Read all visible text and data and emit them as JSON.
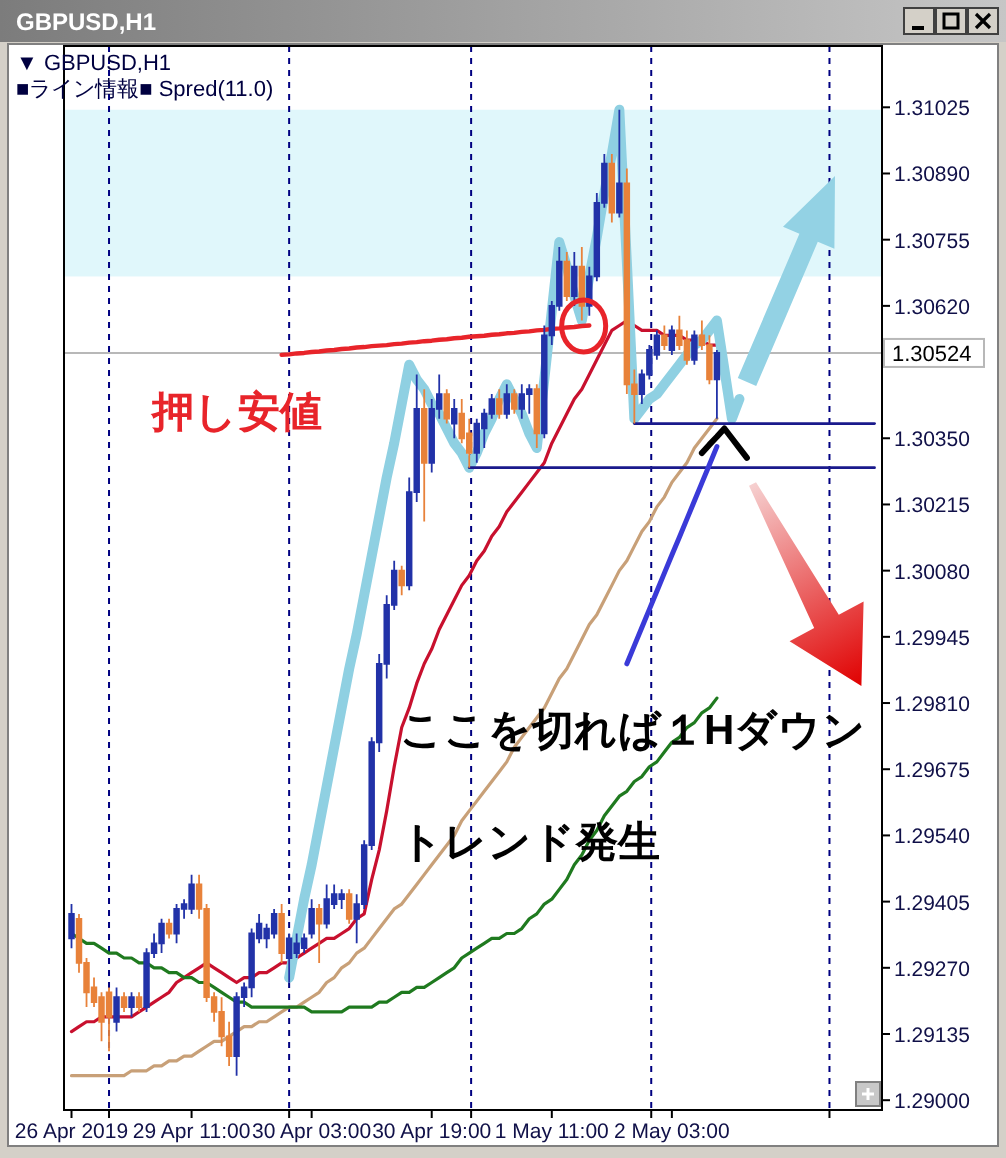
{
  "chart_data": {
    "type": "candlestick",
    "title": "GBPUSD,H1",
    "subtitle": "▼ GBPUSD,H1",
    "annotations": [
      "■ライン情報■ Spred(11.0)",
      "押し安値",
      "ここを切れば１Hダウン",
      "トレンド発生"
    ],
    "grid": "x",
    "categories": [
      "26 Apr 2019",
      null,
      null,
      null,
      null,
      null,
      null,
      null,
      null,
      null,
      null,
      null,
      null,
      null,
      null,
      null,
      "29 Apr 11:00",
      null,
      null,
      null,
      null,
      null,
      null,
      null,
      null,
      null,
      null,
      null,
      null,
      null,
      null,
      null,
      "30 Apr 03:00",
      null,
      null,
      null,
      null,
      null,
      null,
      null,
      null,
      null,
      null,
      null,
      null,
      null,
      null,
      null,
      "30 Apr 19:00",
      null,
      null,
      null,
      null,
      null,
      null,
      null,
      null,
      null,
      null,
      null,
      null,
      null,
      null,
      null,
      "1 May 11:00",
      null,
      null,
      null,
      null,
      null,
      null,
      null,
      null,
      null,
      null,
      null,
      null,
      null,
      null,
      null,
      "2 May 03:00",
      null,
      null,
      null,
      null,
      null,
      null,
      null,
      null,
      null,
      null,
      null,
      null,
      null,
      null,
      null,
      null,
      null,
      null,
      null,
      null,
      null,
      null,
      null,
      null,
      null,
      null,
      null
    ],
    "ohlc": [
      [
        1.2933,
        1.294,
        1.2931,
        1.2938
      ],
      [
        1.2937,
        1.2938,
        1.2926,
        1.2928
      ],
      [
        1.2928,
        1.2929,
        1.2919,
        1.2922
      ],
      [
        1.2923,
        1.2925,
        1.2919,
        1.292
      ],
      [
        1.2921,
        1.2922,
        1.2912,
        1.2916
      ],
      [
        1.2922,
        1.2923,
        1.291,
        1.2917
      ],
      [
        1.2916,
        1.2923,
        1.2914,
        1.2921
      ],
      [
        1.2921,
        1.2922,
        1.2918,
        1.2919
      ],
      [
        1.2919,
        1.2922,
        1.2917,
        1.2921
      ],
      [
        1.2921,
        1.2922,
        1.2918,
        1.2919
      ],
      [
        1.2919,
        1.2931,
        1.2918,
        1.293
      ],
      [
        1.293,
        1.2934,
        1.2929,
        1.2932
      ],
      [
        1.2932,
        1.2937,
        1.293,
        1.2936
      ],
      [
        1.2936,
        1.2937,
        1.2933,
        1.2934
      ],
      [
        1.2934,
        1.294,
        1.2932,
        1.2939
      ],
      [
        1.2939,
        1.2941,
        1.2937,
        1.294
      ],
      [
        1.2939,
        1.2946,
        1.2938,
        1.2944
      ],
      [
        1.2944,
        1.2946,
        1.2937,
        1.2939
      ],
      [
        1.2939,
        1.294,
        1.292,
        1.2921
      ],
      [
        1.2921,
        1.2922,
        1.2916,
        1.2918
      ],
      [
        1.2918,
        1.2921,
        1.2911,
        1.2913
      ],
      [
        1.2913,
        1.2916,
        1.2907,
        1.2909
      ],
      [
        1.2909,
        1.2922,
        1.2905,
        1.2921
      ],
      [
        1.2921,
        1.2924,
        1.2919,
        1.2923
      ],
      [
        1.2923,
        1.2935,
        1.2921,
        1.2934
      ],
      [
        1.2933,
        1.2938,
        1.2932,
        1.2936
      ],
      [
        1.2933,
        1.2936,
        1.2931,
        1.2935
      ],
      [
        1.2934,
        1.2939,
        1.2933,
        1.2938
      ],
      [
        1.2938,
        1.294,
        1.2928,
        1.293
      ],
      [
        1.2929,
        1.2934,
        1.2924,
        1.2933
      ],
      [
        1.293,
        1.2934,
        1.2929,
        1.2932
      ],
      [
        1.2931,
        1.2934,
        1.293,
        1.2933
      ],
      [
        1.2934,
        1.2941,
        1.2933,
        1.2939
      ],
      [
        1.2939,
        1.294,
        1.2928,
        1.2936
      ],
      [
        1.2936,
        1.2944,
        1.2935,
        1.2941
      ],
      [
        1.294,
        1.2944,
        1.2939,
        1.2942
      ],
      [
        1.2941,
        1.2943,
        1.2939,
        1.2942
      ],
      [
        1.2942,
        1.2943,
        1.2936,
        1.2937
      ],
      [
        1.2937,
        1.2942,
        1.2932,
        1.294
      ],
      [
        1.294,
        1.2953,
        1.2939,
        1.2952
      ],
      [
        1.2952,
        1.2974,
        1.2951,
        1.2973
      ],
      [
        1.2973,
        1.2991,
        1.2971,
        1.2989
      ],
      [
        1.2989,
        1.3003,
        1.2986,
        1.3001
      ],
      [
        1.3001,
        1.301,
        1.3,
        1.3008
      ],
      [
        1.3008,
        1.3009,
        1.3003,
        1.3005
      ],
      [
        1.3005,
        1.3027,
        1.3004,
        1.3024
      ],
      [
        1.3024,
        1.3048,
        1.3022,
        1.3041
      ],
      [
        1.3041,
        1.3045,
        1.3018,
        1.303
      ],
      [
        1.303,
        1.3043,
        1.3028,
        1.3041
      ],
      [
        1.3041,
        1.3048,
        1.3039,
        1.3044
      ],
      [
        1.3044,
        1.3045,
        1.3038,
        1.3039
      ],
      [
        1.3038,
        1.3043,
        1.3035,
        1.3041
      ],
      [
        1.304,
        1.3043,
        1.3034,
        1.3035
      ],
      [
        1.3036,
        1.3039,
        1.3029,
        1.3032
      ],
      [
        1.3032,
        1.3039,
        1.303,
        1.3038
      ],
      [
        1.3037,
        1.3041,
        1.3033,
        1.304
      ],
      [
        1.304,
        1.3044,
        1.3039,
        1.3043
      ],
      [
        1.3043,
        1.3045,
        1.3039,
        1.304
      ],
      [
        1.304,
        1.3046,
        1.3039,
        1.3044
      ],
      [
        1.3044,
        1.3045,
        1.304,
        1.3041
      ],
      [
        1.3041,
        1.3046,
        1.3039,
        1.3044
      ],
      [
        1.3044,
        1.3046,
        1.304,
        1.3045
      ],
      [
        1.3045,
        1.3046,
        1.3033,
        1.3036
      ],
      [
        1.3036,
        1.3058,
        1.3035,
        1.3056
      ],
      [
        1.3056,
        1.3063,
        1.3054,
        1.3062
      ],
      [
        1.3062,
        1.3074,
        1.3061,
        1.3071
      ],
      [
        1.3071,
        1.3073,
        1.3063,
        1.3064
      ],
      [
        1.3064,
        1.3073,
        1.3062,
        1.307
      ],
      [
        1.307,
        1.3074,
        1.3059,
        1.3062
      ],
      [
        1.3062,
        1.307,
        1.306,
        1.3068
      ],
      [
        1.3068,
        1.3085,
        1.3067,
        1.3083
      ],
      [
        1.3083,
        1.3093,
        1.3082,
        1.3091
      ],
      [
        1.3091,
        1.3093,
        1.3079,
        1.3081
      ],
      [
        1.3081,
        1.3102,
        1.308,
        1.3087
      ],
      [
        1.3087,
        1.309,
        1.3044,
        1.3046
      ],
      [
        1.3046,
        1.3049,
        1.3038,
        1.3044
      ],
      [
        1.3044,
        1.3049,
        1.3042,
        1.3048
      ],
      [
        1.3048,
        1.3054,
        1.3047,
        1.3053
      ],
      [
        1.3052,
        1.3057,
        1.3051,
        1.3056
      ],
      [
        1.3056,
        1.3058,
        1.3053,
        1.3054
      ],
      [
        1.3053,
        1.3058,
        1.3052,
        1.3057
      ],
      [
        1.3057,
        1.306,
        1.3053,
        1.3054
      ],
      [
        1.3055,
        1.3057,
        1.305,
        1.3051
      ],
      [
        1.3051,
        1.3057,
        1.305,
        1.3056
      ],
      [
        1.3056,
        1.3059,
        1.3053,
        1.3054
      ],
      [
        1.3054,
        1.3056,
        1.3046,
        1.3047
      ],
      [
        1.3047,
        1.3053,
        1.3039,
        1.30524
      ],
      null,
      null,
      null,
      null,
      null,
      null,
      null,
      null,
      null,
      null,
      null,
      null,
      null,
      null,
      null,
      null,
      null,
      null,
      null,
      null,
      null
    ],
    "colors": [
      "#2232a8",
      "#e8823a",
      "#e8823a",
      "#e8823a",
      "#e8823a",
      "#e8823a",
      "#2232a8",
      "#e8823a",
      "#2232a8",
      "#e8823a",
      "#2232a8",
      "#2232a8",
      "#2232a8",
      "#e8823a",
      "#2232a8",
      "#2232a8",
      "#2232a8",
      "#e8823a",
      "#e8823a",
      "#e8823a",
      "#e8823a",
      "#e8823a",
      "#2232a8",
      "#2232a8",
      "#2232a8",
      "#2232a8",
      "#2232a8",
      "#2232a8",
      "#e8823a",
      "#2232a8",
      "#2232a8",
      "#2232a8",
      "#2232a8",
      "#e8823a",
      "#2232a8",
      "#2232a8",
      "#2232a8",
      "#e8823a",
      "#2232a8",
      "#2232a8",
      "#2232a8",
      "#2232a8",
      "#2232a8",
      "#2232a8",
      "#e8823a",
      "#2232a8",
      "#2232a8",
      "#e8823a",
      "#2232a8",
      "#2232a8",
      "#e8823a",
      "#2232a8",
      "#e8823a",
      "#e8823a",
      "#2232a8",
      "#2232a8",
      "#2232a8",
      "#e8823a",
      "#2232a8",
      "#e8823a",
      "#2232a8",
      "#2232a8",
      "#e8823a",
      "#2232a8",
      "#2232a8",
      "#2232a8",
      "#e8823a",
      "#2232a8",
      "#e8823a",
      "#2232a8",
      "#2232a8",
      "#2232a8",
      "#e8823a",
      "#2232a8",
      "#e8823a",
      "#e8823a",
      "#2232a8",
      "#2232a8",
      "#2232a8",
      "#e8823a",
      "#2232a8",
      "#e8823a",
      "#e8823a",
      "#2232a8",
      "#e8823a",
      "#e8823a",
      "#2232a8",
      null,
      null,
      null,
      null,
      null,
      null,
      null,
      null,
      null,
      null,
      null,
      null,
      null,
      null,
      null,
      null,
      null,
      null,
      null,
      null,
      null
    ],
    "series": [
      {
        "type": "line",
        "color": "#c8102e",
        "values": [
          1.2914,
          1.2915,
          1.2916,
          1.2916,
          1.2917,
          1.2917,
          1.2917,
          1.2917,
          1.2917,
          1.2918,
          1.2919,
          1.292,
          1.2921,
          1.2922,
          1.2924,
          1.2925,
          1.2926,
          1.2927,
          1.2928,
          1.2927,
          1.2926,
          1.2925,
          1.2924,
          1.2925,
          1.2925,
          1.2926,
          1.2926,
          1.2927,
          1.2928,
          1.2928,
          1.2929,
          1.293,
          1.2931,
          1.2932,
          1.2933,
          1.2933,
          1.2934,
          1.2935,
          1.2937,
          1.2938,
          1.2945,
          1.2951,
          1.2959,
          1.2968,
          1.2976,
          1.298,
          1.2985,
          1.2989,
          1.2992,
          1.2996,
          1.2999,
          1.3002,
          1.3005,
          1.3007,
          1.301,
          1.3012,
          1.3015,
          1.3017,
          1.302,
          1.3022,
          1.3024,
          1.3026,
          1.3028,
          1.303,
          1.3034,
          1.3037,
          1.304,
          1.3043,
          1.3045,
          1.3048,
          1.3051,
          1.3054,
          1.3057,
          1.3058,
          1.3059,
          1.3058,
          1.3057,
          1.3057,
          1.3057,
          1.3056,
          1.3056,
          1.3056,
          1.3055,
          1.3055,
          1.3055,
          1.3054,
          1.3054,
          null,
          null,
          null,
          null,
          null,
          null,
          null,
          null,
          null,
          null,
          null,
          null,
          null,
          null,
          null,
          null,
          null,
          null,
          null,
          null,
          null
        ]
      },
      {
        "type": "line",
        "color": "#c8a078",
        "values": [
          1.2905,
          1.2905,
          1.2905,
          1.2905,
          1.2905,
          1.2905,
          1.2905,
          1.2905,
          1.2906,
          1.2906,
          1.2906,
          1.2907,
          1.2907,
          1.2908,
          1.2908,
          1.2909,
          1.2909,
          1.291,
          1.2911,
          1.2912,
          1.2912,
          1.2913,
          1.2914,
          1.2915,
          1.2915,
          1.2916,
          1.2916,
          1.2917,
          1.2918,
          1.2919,
          1.2919,
          1.292,
          1.2921,
          1.2922,
          1.2924,
          1.2925,
          1.2927,
          1.2928,
          1.293,
          1.2931,
          1.2933,
          1.2935,
          1.2937,
          1.2939,
          1.294,
          1.2942,
          1.2944,
          1.2946,
          1.2948,
          1.295,
          1.2952,
          1.2954,
          1.2957,
          1.2959,
          1.2961,
          1.2963,
          1.2965,
          1.2967,
          1.2969,
          1.2972,
          1.2974,
          1.2976,
          1.2978,
          1.298,
          1.2983,
          1.2986,
          1.2988,
          1.2991,
          1.2994,
          1.2997,
          1.2999,
          1.3002,
          1.3005,
          1.3008,
          1.301,
          1.3013,
          1.3016,
          1.3018,
          1.3021,
          1.3023,
          1.3026,
          1.3028,
          1.303,
          1.3033,
          1.3035,
          1.3037,
          1.3039,
          null,
          null,
          null,
          null,
          null,
          null,
          null,
          null,
          null,
          null,
          null,
          null,
          null,
          null,
          null,
          null,
          null,
          null,
          null,
          null,
          null
        ]
      },
      {
        "type": "line",
        "color": "#1f7a1f",
        "values": [
          1.2934,
          1.2933,
          1.2932,
          1.2932,
          1.2931,
          1.293,
          1.293,
          1.2929,
          1.2929,
          1.2928,
          1.2928,
          1.2927,
          1.2927,
          1.2926,
          1.2926,
          1.2925,
          1.2925,
          1.2924,
          1.2924,
          1.2923,
          1.2922,
          1.2921,
          1.292,
          1.292,
          1.2919,
          1.2919,
          1.2919,
          1.2919,
          1.2919,
          1.2919,
          1.2919,
          1.2919,
          1.2918,
          1.2918,
          1.2918,
          1.2918,
          1.2918,
          1.2919,
          1.2919,
          1.2919,
          1.2919,
          1.292,
          1.292,
          1.2921,
          1.2922,
          1.2922,
          1.2923,
          1.2923,
          1.2924,
          1.2925,
          1.2926,
          1.2927,
          1.2929,
          1.293,
          1.2931,
          1.2932,
          1.2933,
          1.2933,
          1.2934,
          1.2934,
          1.2935,
          1.2937,
          1.2938,
          1.294,
          1.2941,
          1.2943,
          1.2945,
          1.2948,
          1.295,
          1.2953,
          1.2955,
          1.2958,
          1.296,
          1.2962,
          1.2963,
          1.2965,
          1.2966,
          1.2968,
          1.2969,
          1.2971,
          1.2973,
          1.2974,
          1.2976,
          1.2977,
          1.2979,
          1.298,
          1.2982,
          null,
          null,
          null,
          null,
          null,
          null,
          null,
          null,
          null,
          null,
          null,
          null,
          null,
          null,
          null,
          null,
          null,
          null,
          null,
          null,
          null
        ]
      },
      {
        "type": "line",
        "color": "#8fd0e2",
        "values": [
          null,
          null,
          null,
          null,
          null,
          null,
          null,
          null,
          null,
          null,
          null,
          null,
          null,
          null,
          null,
          null,
          null,
          null,
          null,
          null,
          null,
          null,
          null,
          null,
          null,
          null,
          null,
          null,
          null,
          1.2925,
          1.2933,
          1.2941,
          1.2948,
          1.2956,
          1.2964,
          1.2972,
          1.298,
          1.2988,
          1.2995,
          1.3003,
          1.3011,
          1.3019,
          1.3027,
          1.3034,
          1.3042,
          1.305,
          1.3047,
          1.3045,
          1.3042,
          1.304,
          1.3037,
          1.3034,
          1.3032,
          1.3029,
          1.3032,
          1.3036,
          1.3039,
          1.3043,
          1.3046,
          1.3043,
          1.304,
          1.3036,
          1.3033,
          1.3047,
          1.3061,
          1.3075,
          1.307,
          1.3064,
          1.3059,
          1.3068,
          1.3076,
          1.3085,
          1.3093,
          1.3102,
          1.3071,
          1.3039,
          1.3041,
          1.3043,
          1.3044,
          1.3046,
          1.3048,
          1.305,
          1.3052,
          1.3054,
          1.3055,
          1.3057,
          1.3059,
          1.3049,
          1.3039,
          1.3043,
          null,
          null,
          null,
          null,
          null,
          null,
          null,
          null,
          null,
          null,
          null,
          null,
          null,
          null,
          null,
          null,
          null,
          null
        ]
      },
      {
        "type": "line",
        "color": "#e8242a",
        "values": [
          null,
          null,
          null,
          null,
          null,
          null,
          null,
          null,
          null,
          null,
          null,
          null,
          null,
          null,
          null,
          null,
          null,
          null,
          null,
          null,
          null,
          null,
          null,
          null,
          null,
          null,
          null,
          null,
          1.3052,
          1.30521,
          1.30523,
          1.30524,
          1.30526,
          1.30527,
          1.30529,
          1.3053,
          1.30532,
          1.30533,
          1.30535,
          1.30536,
          1.30538,
          1.30539,
          1.3054,
          1.30542,
          1.30543,
          1.30545,
          1.30546,
          1.30548,
          1.30549,
          1.30551,
          1.30552,
          1.30554,
          1.30555,
          1.30557,
          1.30558,
          1.30559,
          1.30561,
          1.30562,
          1.30564,
          1.30565,
          1.30567,
          1.30568,
          1.3057,
          1.30571,
          1.30573,
          1.30574,
          1.30576,
          1.30577,
          1.30579,
          1.3058,
          null,
          null,
          null,
          null,
          null,
          null,
          null,
          null,
          null,
          null,
          null,
          null,
          null,
          null,
          null,
          null,
          null,
          null,
          null,
          null,
          null,
          null,
          null,
          null,
          null,
          null,
          null,
          null,
          null,
          null,
          null,
          null,
          null,
          null,
          null,
          null,
          null,
          null
        ]
      },
      {
        "type": "line",
        "color": "#1a1a8c",
        "values": [
          null,
          null,
          null,
          null,
          null,
          null,
          null,
          null,
          null,
          null,
          null,
          null,
          null,
          null,
          null,
          null,
          null,
          null,
          null,
          null,
          null,
          null,
          null,
          null,
          null,
          null,
          null,
          null,
          null,
          null,
          null,
          null,
          null,
          null,
          null,
          null,
          null,
          null,
          null,
          null,
          null,
          null,
          null,
          null,
          null,
          null,
          null,
          null,
          null,
          null,
          null,
          null,
          null,
          1.3029,
          1.3029,
          1.3029,
          1.3029,
          1.3029,
          1.3029,
          1.3029,
          1.3029,
          1.3029,
          1.3029,
          1.3029,
          1.3029,
          1.3029,
          1.3029,
          1.3029,
          1.3029,
          1.3029,
          1.3029,
          1.3029,
          1.3029,
          1.3029,
          1.3029,
          1.3029,
          1.3029,
          1.3029,
          1.3029,
          1.3029,
          1.3029,
          1.3029,
          1.3029,
          1.3029,
          1.3029,
          1.3029,
          1.3029,
          1.3029,
          1.3029,
          1.3029,
          1.3029,
          1.3029,
          1.3029,
          1.3029,
          1.3029,
          1.3029,
          1.3029,
          1.3029,
          1.3029,
          1.3029,
          1.3029,
          1.3029,
          1.3029,
          1.3029,
          1.3029,
          1.3029,
          1.3029,
          1.3029
        ]
      },
      {
        "type": "line",
        "color": "#1a1a8c",
        "values": [
          null,
          null,
          null,
          null,
          null,
          null,
          null,
          null,
          null,
          null,
          null,
          null,
          null,
          null,
          null,
          null,
          null,
          null,
          null,
          null,
          null,
          null,
          null,
          null,
          null,
          null,
          null,
          null,
          null,
          null,
          null,
          null,
          null,
          null,
          null,
          null,
          null,
          null,
          null,
          null,
          null,
          null,
          null,
          null,
          null,
          null,
          null,
          null,
          null,
          null,
          null,
          null,
          null,
          null,
          null,
          null,
          null,
          null,
          null,
          null,
          null,
          null,
          null,
          null,
          null,
          null,
          null,
          null,
          null,
          null,
          null,
          null,
          null,
          null,
          null,
          1.3038,
          1.3038,
          1.3038,
          1.3038,
          1.3038,
          1.3038,
          1.3038,
          1.3038,
          1.3038,
          1.3038,
          1.3038,
          1.3038,
          1.3038,
          1.3038,
          1.3038,
          1.3038,
          1.3038,
          1.3038,
          1.3038,
          1.3038,
          1.3038,
          1.3038,
          1.3038,
          1.3038,
          1.3038,
          1.3038,
          1.3038,
          1.3038,
          1.3038,
          1.3038,
          1.3038,
          1.3038,
          1.3038
        ]
      },
      {
        "type": "line",
        "color": "#3a3ad8",
        "values": [
          null,
          null,
          null,
          null,
          null,
          null,
          null,
          null,
          null,
          null,
          null,
          null,
          null,
          null,
          null,
          null,
          null,
          null,
          null,
          null,
          null,
          null,
          null,
          null,
          null,
          null,
          null,
          null,
          null,
          null,
          null,
          null,
          null,
          null,
          null,
          null,
          null,
          null,
          null,
          null,
          null,
          null,
          null,
          null,
          null,
          null,
          null,
          null,
          null,
          null,
          null,
          null,
          null,
          null,
          null,
          null,
          null,
          null,
          null,
          null,
          null,
          null,
          null,
          null,
          null,
          null,
          null,
          null,
          null,
          null,
          null,
          null,
          null,
          null,
          1.2989,
          1.29927,
          1.29964,
          1.30001,
          1.30038,
          1.30075,
          1.30112,
          1.30148,
          1.30185,
          1.30222,
          1.30259,
          1.30296,
          1.30333,
          null,
          null,
          null,
          null,
          null,
          null,
          null,
          null,
          null,
          null,
          null,
          null,
          null,
          null,
          null,
          null,
          null,
          null,
          null,
          null,
          null
        ]
      },
      {
        "type": "line",
        "color": "#000000",
        "values": [
          null,
          null,
          null,
          null,
          null,
          null,
          null,
          null,
          null,
          null,
          null,
          null,
          null,
          null,
          null,
          null,
          null,
          null,
          null,
          null,
          null,
          null,
          null,
          null,
          null,
          null,
          null,
          null,
          null,
          null,
          null,
          null,
          null,
          null,
          null,
          null,
          null,
          null,
          null,
          null,
          null,
          null,
          null,
          null,
          null,
          null,
          null,
          null,
          null,
          null,
          null,
          null,
          null,
          null,
          null,
          null,
          null,
          null,
          null,
          null,
          null,
          null,
          null,
          null,
          null,
          null,
          null,
          null,
          null,
          null,
          null,
          null,
          null,
          null,
          null,
          null,
          null,
          null,
          null,
          null,
          null,
          null,
          null,
          null,
          1.3032,
          1.30337,
          1.30353,
          1.3037,
          1.3035,
          1.3033,
          1.3031,
          null,
          null,
          null,
          null,
          null,
          null,
          null,
          null,
          null,
          null,
          null,
          null,
          null,
          null,
          null,
          null,
          null
        ]
      }
    ],
    "bands": [
      {
        "axis": "y",
        "from": 1.3068,
        "to": 1.3102,
        "color": "#e0f7fb"
      }
    ],
    "ref_lines": [
      {
        "axis": "y",
        "value": 1.30524,
        "label": "1.30524",
        "color": "#b8b8b8",
        "line_style": "solid"
      }
    ],
    "ylim": [
      1.2898,
      1.3115
    ],
    "yticks": [
      1.31025,
      {
        "value": 1.3089,
        "label": "1.30890"
      },
      1.30755,
      {
        "value": 1.3062,
        "label": "1.30620"
      },
      {
        "value": 1.3035,
        "label": "1.30350"
      },
      1.30215,
      {
        "value": 1.3008,
        "label": "1.30080"
      },
      1.29945,
      {
        "value": 1.2981,
        "label": "1.29810"
      },
      1.29675,
      {
        "value": 1.2954,
        "label": "1.29540"
      },
      1.29405,
      {
        "value": 1.2927,
        "label": "1.29270"
      },
      1.29135,
      {
        "value": 1.29,
        "label": "1.29000"
      }
    ]
  }
}
